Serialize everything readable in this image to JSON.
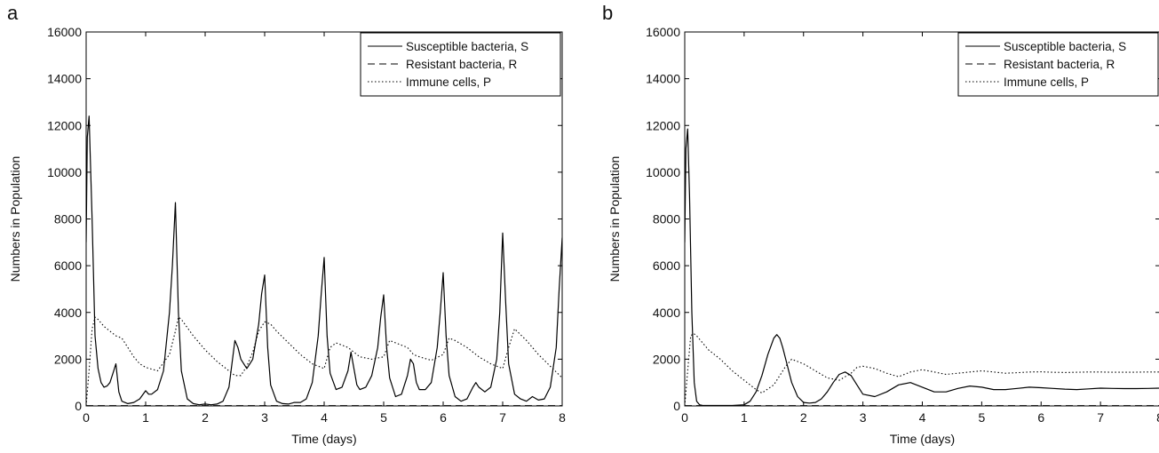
{
  "chart_data": [
    {
      "type": "line",
      "panel_label": "a",
      "xlabel": "Time (days)",
      "ylabel": "Numbers in Population",
      "xlim": [
        0,
        8
      ],
      "ylim": [
        0,
        16000
      ],
      "xticks": [
        0,
        1,
        2,
        3,
        4,
        5,
        6,
        7,
        8
      ],
      "yticks": [
        0,
        2000,
        4000,
        6000,
        8000,
        10000,
        12000,
        14000,
        16000
      ],
      "legend": "top-right",
      "grid": false,
      "series": [
        {
          "name": "Susceptible bacteria, S",
          "style": "solid",
          "x": [
            0,
            0.02,
            0.05,
            0.1,
            0.15,
            0.2,
            0.25,
            0.3,
            0.35,
            0.4,
            0.45,
            0.5,
            0.55,
            0.6,
            0.7,
            0.8,
            0.9,
            1.0,
            1.05,
            1.1,
            1.2,
            1.3,
            1.4,
            1.45,
            1.5,
            1.55,
            1.6,
            1.7,
            1.8,
            1.9,
            2.0,
            2.1,
            2.2,
            2.3,
            2.4,
            2.5,
            2.55,
            2.6,
            2.7,
            2.8,
            2.9,
            2.95,
            3.0,
            3.05,
            3.1,
            3.2,
            3.3,
            3.4,
            3.5,
            3.6,
            3.7,
            3.8,
            3.9,
            3.95,
            4.0,
            4.05,
            4.1,
            4.2,
            4.3,
            4.4,
            4.45,
            4.5,
            4.55,
            4.6,
            4.7,
            4.8,
            4.9,
            4.95,
            5.0,
            5.05,
            5.1,
            5.2,
            5.3,
            5.4,
            5.45,
            5.5,
            5.55,
            5.6,
            5.7,
            5.8,
            5.9,
            5.95,
            6.0,
            6.05,
            6.1,
            6.2,
            6.3,
            6.4,
            6.5,
            6.55,
            6.6,
            6.7,
            6.8,
            6.9,
            6.95,
            7.0,
            7.05,
            7.1,
            7.2,
            7.3,
            7.4,
            7.5,
            7.6,
            7.7,
            7.8,
            7.9,
            7.95,
            8.0
          ],
          "values": [
            7000,
            11500,
            12400,
            8000,
            3000,
            1600,
            1000,
            800,
            850,
            1000,
            1400,
            1800,
            600,
            200,
            100,
            150,
            300,
            650,
            500,
            500,
            700,
            1500,
            4000,
            6000,
            8700,
            4000,
            1500,
            300,
            100,
            50,
            80,
            50,
            80,
            200,
            800,
            2800,
            2500,
            2000,
            1600,
            2000,
            3500,
            4800,
            5600,
            2500,
            900,
            200,
            100,
            80,
            150,
            150,
            300,
            1000,
            3000,
            4800,
            6350,
            3000,
            1400,
            700,
            800,
            1500,
            2300,
            1600,
            900,
            700,
            800,
            1300,
            2500,
            3800,
            4750,
            2500,
            1200,
            400,
            500,
            1300,
            2000,
            1800,
            1000,
            700,
            700,
            1000,
            2500,
            4000,
            5700,
            3000,
            1300,
            400,
            200,
            300,
            800,
            1000,
            800,
            600,
            800,
            2000,
            4000,
            7400,
            4500,
            1800,
            500,
            300,
            200,
            400,
            250,
            300,
            800,
            2500,
            5000,
            7200
          ]
        },
        {
          "name": "Resistant bacteria, R",
          "style": "dashed",
          "x": [
            0,
            8
          ],
          "values": [
            10,
            10
          ]
        },
        {
          "name": "Immune cells, P",
          "style": "dotted",
          "x": [
            0,
            0.05,
            0.1,
            0.15,
            0.2,
            0.3,
            0.4,
            0.5,
            0.6,
            0.7,
            0.8,
            0.9,
            1.0,
            1.2,
            1.4,
            1.5,
            1.55,
            1.6,
            1.8,
            2.0,
            2.2,
            2.4,
            2.5,
            2.6,
            2.7,
            2.8,
            2.9,
            3.0,
            3.1,
            3.2,
            3.4,
            3.6,
            3.8,
            4.0,
            4.1,
            4.2,
            4.4,
            4.5,
            4.6,
            4.8,
            5.0,
            5.1,
            5.2,
            5.4,
            5.5,
            5.6,
            5.8,
            6.0,
            6.1,
            6.2,
            6.4,
            6.6,
            6.8,
            7.0,
            7.1,
            7.2,
            7.4,
            7.6,
            7.8,
            8.0
          ],
          "values": [
            0,
            1500,
            3300,
            3800,
            3700,
            3400,
            3200,
            3000,
            2900,
            2500,
            2100,
            1800,
            1650,
            1500,
            2200,
            3200,
            3800,
            3700,
            3000,
            2400,
            1900,
            1500,
            1300,
            1300,
            1700,
            2300,
            3200,
            3600,
            3500,
            3200,
            2700,
            2200,
            1800,
            1600,
            2500,
            2700,
            2500,
            2300,
            2100,
            2000,
            2100,
            2800,
            2700,
            2500,
            2200,
            2100,
            1950,
            2200,
            2900,
            2800,
            2500,
            2100,
            1800,
            1600,
            2500,
            3300,
            2800,
            2200,
            1700,
            1200
          ]
        }
      ]
    },
    {
      "type": "line",
      "panel_label": "b",
      "xlabel": "Time (days)",
      "ylabel": "Numbers in Population",
      "xlim": [
        0,
        8
      ],
      "ylim": [
        0,
        16000
      ],
      "xticks": [
        0,
        1,
        2,
        3,
        4,
        5,
        6,
        7,
        8
      ],
      "yticks": [
        0,
        2000,
        4000,
        6000,
        8000,
        10000,
        12000,
        14000,
        16000
      ],
      "legend": "top-right",
      "grid": false,
      "series": [
        {
          "name": "Susceptible bacteria, S",
          "style": "solid",
          "x": [
            0,
            0.02,
            0.05,
            0.08,
            0.12,
            0.16,
            0.2,
            0.25,
            0.3,
            0.4,
            0.6,
            0.8,
            1.0,
            1.1,
            1.2,
            1.3,
            1.4,
            1.5,
            1.55,
            1.6,
            1.65,
            1.7,
            1.8,
            1.9,
            2.0,
            2.1,
            2.2,
            2.3,
            2.4,
            2.5,
            2.6,
            2.7,
            2.8,
            2.9,
            3.0,
            3.2,
            3.4,
            3.6,
            3.8,
            4.0,
            4.2,
            4.4,
            4.6,
            4.8,
            5.0,
            5.2,
            5.4,
            5.6,
            5.8,
            6.0,
            6.2,
            6.4,
            6.6,
            6.8,
            7.0,
            7.2,
            7.4,
            7.6,
            7.8,
            8.0
          ],
          "values": [
            7000,
            11000,
            11850,
            9000,
            4000,
            1000,
            200,
            50,
            20,
            20,
            20,
            20,
            50,
            200,
            600,
            1300,
            2200,
            2900,
            3050,
            2900,
            2500,
            2000,
            1000,
            400,
            150,
            120,
            150,
            300,
            600,
            1000,
            1350,
            1450,
            1300,
            900,
            500,
            400,
            600,
            900,
            1000,
            800,
            600,
            600,
            750,
            850,
            800,
            700,
            700,
            750,
            800,
            780,
            750,
            720,
            700,
            730,
            760,
            750,
            740,
            740,
            750,
            760
          ]
        },
        {
          "name": "Resistant bacteria, R",
          "style": "dashed",
          "x": [
            0,
            8
          ],
          "values": [
            10,
            10
          ]
        },
        {
          "name": "Immune cells, P",
          "style": "dotted",
          "x": [
            0,
            0.05,
            0.1,
            0.15,
            0.2,
            0.3,
            0.4,
            0.6,
            0.8,
            1.0,
            1.2,
            1.3,
            1.5,
            1.7,
            1.8,
            2.0,
            2.2,
            2.4,
            2.6,
            2.8,
            2.9,
            3.0,
            3.2,
            3.4,
            3.6,
            3.8,
            4.0,
            4.2,
            4.4,
            4.6,
            4.8,
            5.0,
            5.2,
            5.4,
            5.6,
            5.8,
            6.0,
            6.2,
            6.4,
            6.6,
            6.8,
            7.0,
            7.2,
            7.4,
            7.6,
            7.8,
            8.0
          ],
          "values": [
            0,
            1500,
            3000,
            3100,
            3000,
            2700,
            2400,
            2000,
            1500,
            1100,
            700,
            550,
            900,
            1700,
            2000,
            1800,
            1500,
            1200,
            1100,
            1400,
            1650,
            1700,
            1600,
            1400,
            1250,
            1450,
            1550,
            1450,
            1350,
            1400,
            1450,
            1500,
            1450,
            1400,
            1420,
            1450,
            1460,
            1440,
            1430,
            1440,
            1450,
            1450,
            1440,
            1440,
            1445,
            1450,
            1450
          ]
        }
      ]
    }
  ]
}
